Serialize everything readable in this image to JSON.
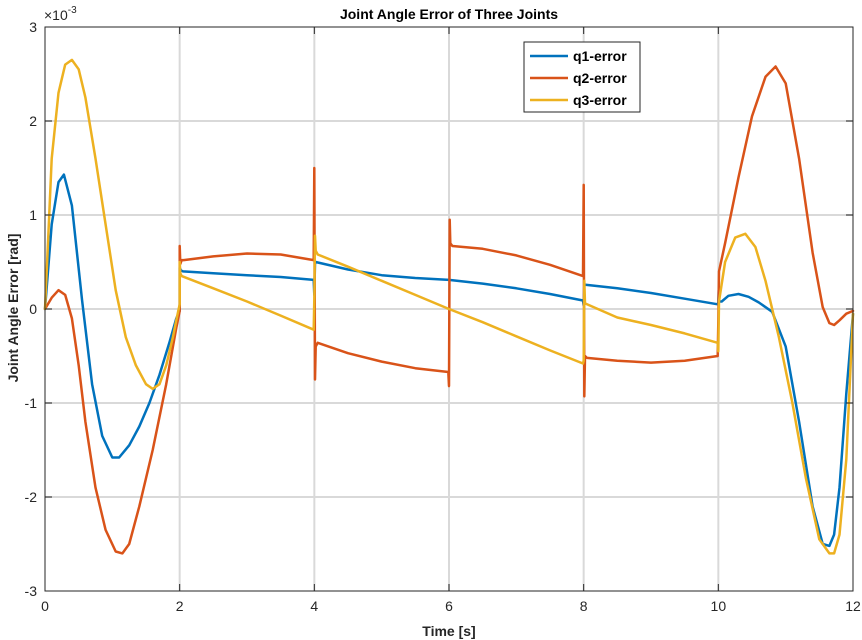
{
  "chart_data": {
    "type": "line",
    "title": "Joint Angle Error of Three Joints",
    "xlabel": "Time [s]",
    "ylabel": "Joint Angle Error [rad]",
    "y_exponent_label": "×10",
    "y_exponent_power": "-3",
    "y_scale_factor": 0.001,
    "xlim": [
      0,
      12
    ],
    "ylim": [
      -3,
      3
    ],
    "x_ticks": [
      0,
      2,
      4,
      6,
      8,
      10,
      12
    ],
    "x_tick_labels": [
      "0",
      "2",
      "4",
      "6",
      "8",
      "10",
      "12"
    ],
    "y_ticks": [
      -3,
      -2,
      -1,
      0,
      1,
      2,
      3
    ],
    "y_tick_labels": [
      "-3",
      "-2",
      "-1",
      "0",
      "1",
      "2",
      "3"
    ],
    "grid": true,
    "legend_position": "top-right",
    "series": [
      {
        "name": "q1-error",
        "color": "#0072BD",
        "x": [
          0,
          0.1,
          0.2,
          0.28,
          0.4,
          0.55,
          0.7,
          0.85,
          1.0,
          1.1,
          1.25,
          1.4,
          1.55,
          1.7,
          1.85,
          1.95,
          2.0,
          2.0,
          2.02,
          2.05,
          2.5,
          3.0,
          3.5,
          3.99,
          4.0,
          4.01,
          4.02,
          4.5,
          5.0,
          5.5,
          6.0,
          6.5,
          7.0,
          7.5,
          7.99,
          8.0,
          8.01,
          8.5,
          9.0,
          9.5,
          9.99,
          10.0,
          10.005,
          10.01,
          10.05,
          10.15,
          10.3,
          10.45,
          10.6,
          10.8,
          11.0,
          11.2,
          11.4,
          11.55,
          11.65,
          11.72,
          11.8,
          11.9,
          12.0
        ],
        "values": [
          0.0,
          0.9,
          1.35,
          1.43,
          1.1,
          0.1,
          -0.8,
          -1.35,
          -1.58,
          -1.58,
          -1.45,
          -1.25,
          -1.0,
          -0.7,
          -0.35,
          -0.1,
          -0.02,
          0.44,
          0.41,
          0.4,
          0.38,
          0.36,
          0.34,
          0.31,
          0.15,
          0.48,
          0.5,
          0.42,
          0.36,
          0.33,
          0.31,
          0.27,
          0.22,
          0.16,
          0.09,
          0.04,
          0.26,
          0.22,
          0.17,
          0.11,
          0.05,
          0.07,
          0.2,
          0.08,
          0.08,
          0.14,
          0.16,
          0.13,
          0.07,
          -0.03,
          -0.4,
          -1.2,
          -2.1,
          -2.5,
          -2.52,
          -2.4,
          -1.9,
          -0.9,
          -0.05
        ]
      },
      {
        "name": "q2-error",
        "color": "#D95319",
        "x": [
          0,
          0.1,
          0.2,
          0.3,
          0.4,
          0.5,
          0.6,
          0.75,
          0.9,
          1.05,
          1.15,
          1.25,
          1.4,
          1.6,
          1.8,
          1.95,
          2.0,
          2.0,
          2.01,
          2.03,
          2.06,
          2.5,
          3.0,
          3.5,
          3.99,
          4.0,
          4.01,
          4.02,
          4.05,
          4.5,
          5.0,
          5.5,
          5.99,
          6.0,
          6.01,
          6.02,
          6.05,
          6.5,
          7.0,
          7.5,
          7.99,
          8.0,
          8.01,
          8.02,
          8.05,
          8.5,
          9.0,
          9.5,
          9.99,
          10.0,
          10.01,
          10.1,
          10.3,
          10.5,
          10.7,
          10.85,
          11.0,
          11.2,
          11.4,
          11.55,
          11.65,
          11.72,
          11.8,
          11.9,
          12.0
        ],
        "values": [
          0.0,
          0.12,
          0.2,
          0.15,
          -0.1,
          -0.6,
          -1.2,
          -1.9,
          -2.35,
          -2.58,
          -2.6,
          -2.5,
          -2.1,
          -1.5,
          -0.8,
          -0.2,
          -0.02,
          0.67,
          0.48,
          0.52,
          0.52,
          0.56,
          0.59,
          0.58,
          0.52,
          1.5,
          -0.75,
          -0.4,
          -0.36,
          -0.47,
          -0.56,
          -0.63,
          -0.67,
          -0.82,
          0.95,
          0.7,
          0.67,
          0.64,
          0.57,
          0.47,
          0.35,
          1.32,
          -0.93,
          -0.5,
          -0.52,
          -0.55,
          -0.57,
          -0.55,
          -0.5,
          -0.15,
          0.4,
          0.7,
          1.4,
          2.05,
          2.47,
          2.58,
          2.4,
          1.6,
          0.6,
          0.02,
          -0.15,
          -0.17,
          -0.12,
          -0.05,
          -0.02
        ]
      },
      {
        "name": "q3-error",
        "color": "#EDB120",
        "x": [
          0,
          0.05,
          0.1,
          0.2,
          0.3,
          0.4,
          0.5,
          0.6,
          0.75,
          0.9,
          1.05,
          1.2,
          1.35,
          1.5,
          1.6,
          1.7,
          1.8,
          1.9,
          1.95,
          2.0,
          2.0,
          2.01,
          2.03,
          2.5,
          3.0,
          3.5,
          3.99,
          4.0,
          4.01,
          4.02,
          4.05,
          4.5,
          5.0,
          5.5,
          6.0,
          6.5,
          7.0,
          7.5,
          7.99,
          8.0,
          8.01,
          8.02,
          8.5,
          9.0,
          9.5,
          9.99,
          10.0,
          10.01,
          10.1,
          10.25,
          10.4,
          10.55,
          10.7,
          10.9,
          11.1,
          11.3,
          11.5,
          11.65,
          11.72,
          11.8,
          11.9,
          12.0
        ],
        "values": [
          0.0,
          0.8,
          1.6,
          2.3,
          2.6,
          2.65,
          2.55,
          2.25,
          1.6,
          0.9,
          0.2,
          -0.3,
          -0.6,
          -0.8,
          -0.85,
          -0.8,
          -0.6,
          -0.3,
          -0.12,
          0.05,
          0.5,
          0.38,
          0.35,
          0.22,
          0.08,
          -0.07,
          -0.22,
          0.1,
          0.78,
          0.62,
          0.58,
          0.45,
          0.3,
          0.15,
          0.0,
          -0.14,
          -0.29,
          -0.44,
          -0.58,
          -0.55,
          0.3,
          0.06,
          -0.09,
          -0.17,
          -0.26,
          -0.36,
          -0.45,
          0.08,
          0.5,
          0.76,
          0.8,
          0.66,
          0.3,
          -0.3,
          -1.0,
          -1.8,
          -2.45,
          -2.6,
          -2.6,
          -2.4,
          -1.6,
          -0.05
        ]
      }
    ]
  }
}
